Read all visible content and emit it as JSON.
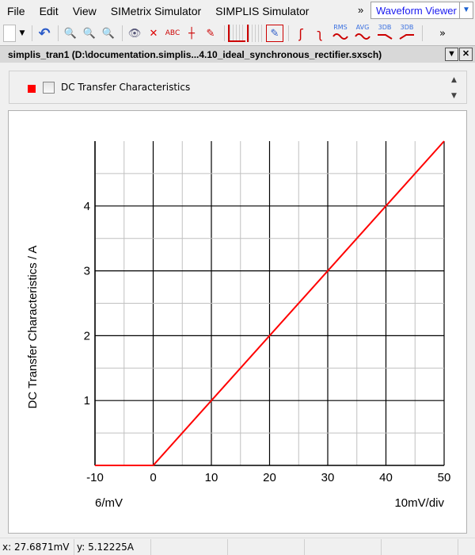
{
  "menu": [
    "File",
    "Edit",
    "View",
    "SIMetrix Simulator",
    "SIMPLIS Simulator"
  ],
  "menu_more": "»",
  "mode_select": "Waveform Viewer",
  "toolbar": {
    "icons": [
      "new-document-icon",
      "dropdown-icon",
      "undo-icon",
      "zoom-vertical-icon",
      "zoom-horizontal-icon",
      "zoom-box-icon",
      "show-curve-icon",
      "hide-curve-icon",
      "axis-label-icon",
      "add-grid-icon",
      "edit-curve-icon",
      "new-graph-icon",
      "new-grid-icon",
      "edit-graph-icon",
      "rise-icon",
      "fall-icon",
      "rms-icon",
      "avg-icon",
      "3db-low-icon",
      "3db-high-icon"
    ],
    "labels": {
      "rms": "RMS",
      "avg": "AVG",
      "db3a": "3DB",
      "db3b": "3DB"
    },
    "more": "»"
  },
  "window_title": "simplis_tran1 (D:\\documentation.simplis...4.10_ideal_synchronous_rectifier.sxsch)",
  "legend": {
    "label": "DC Transfer Characteristics",
    "color": "#ff0000",
    "checked": false
  },
  "chart_data": {
    "type": "line",
    "ylabel": "DC Transfer Characteristics / A",
    "x_units_label": "6/mV",
    "x_div_label": "10mV/div",
    "xlim": [
      -10,
      50
    ],
    "ylim": [
      0,
      5
    ],
    "xticks": [
      -10,
      0,
      10,
      20,
      30,
      40,
      50
    ],
    "yticks": [
      1,
      2,
      3,
      4
    ],
    "grid": true,
    "series": [
      {
        "color": "#ff0000",
        "x": [
          -10,
          0,
          50
        ],
        "y": [
          0,
          0,
          5
        ]
      }
    ]
  },
  "status": {
    "x": "x: 27.6871mV",
    "y": "y: 5.12225A"
  }
}
